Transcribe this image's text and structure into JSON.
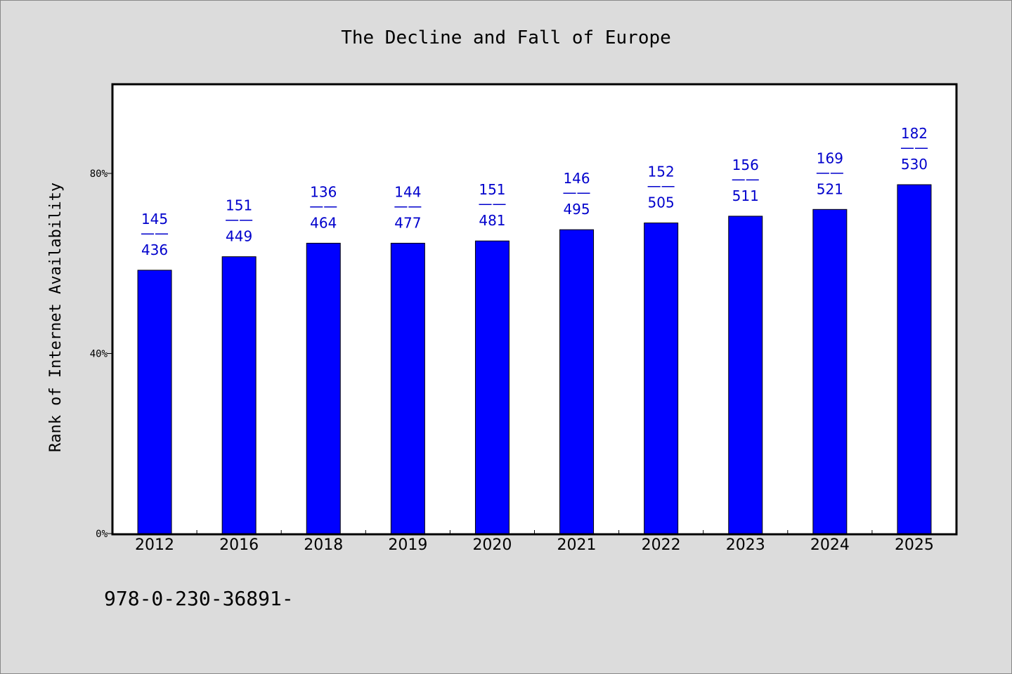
{
  "chart_data": {
    "type": "bar",
    "title": "The Decline and Fall of Europe",
    "xlabel": "",
    "ylabel": "Rank of Internet Availability",
    "categories": [
      "2012",
      "2016",
      "2018",
      "2019",
      "2020",
      "2021",
      "2022",
      "2023",
      "2024",
      "2025"
    ],
    "values": [
      58.5,
      61.5,
      64.5,
      64.5,
      65.0,
      67.5,
      69.0,
      70.5,
      72.0,
      77.5
    ],
    "value_unit": "%",
    "data_labels": [
      {
        "top": "145",
        "sep": "——",
        "bottom": "436"
      },
      {
        "top": "151",
        "sep": "——",
        "bottom": "449"
      },
      {
        "top": "136",
        "sep": "——",
        "bottom": "464"
      },
      {
        "top": "144",
        "sep": "——",
        "bottom": "477"
      },
      {
        "top": "151",
        "sep": "——",
        "bottom": "481"
      },
      {
        "top": "146",
        "sep": "——",
        "bottom": "495"
      },
      {
        "top": "152",
        "sep": "——",
        "bottom": "505"
      },
      {
        "top": "156",
        "sep": "——",
        "bottom": "511"
      },
      {
        "top": "169",
        "sep": "——",
        "bottom": "521"
      },
      {
        "top": "182",
        "sep": "——",
        "bottom": "530"
      }
    ],
    "yticks": [
      {
        "value": 0,
        "label": "0%"
      },
      {
        "value": 40,
        "label": "40%"
      },
      {
        "value": 80,
        "label": "80%"
      }
    ],
    "ylim": [
      0,
      100
    ],
    "grid": false,
    "legend": "none",
    "colors": {
      "bar": "#0000ff",
      "label": "#0000cc",
      "background": "#dcdcdc",
      "plot_bg": "#ffffff"
    }
  },
  "footer_text": "978-0-230-36891-"
}
